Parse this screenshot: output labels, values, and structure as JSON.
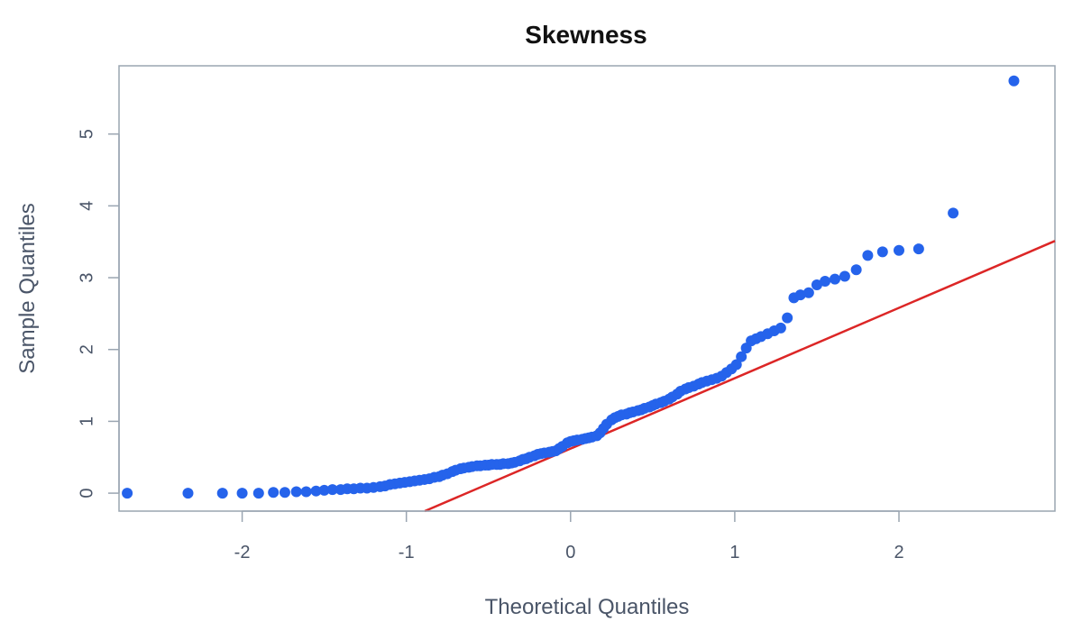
{
  "chart_data": {
    "type": "scatter",
    "title": "Skewness",
    "xlabel": "Theoretical Quantiles",
    "ylabel": "Sample Quantiles",
    "xlim": [
      -2.75,
      2.95
    ],
    "ylim": [
      -0.25,
      5.95
    ],
    "x_ticks": [
      -2,
      -1,
      0,
      1,
      2
    ],
    "y_ticks": [
      0,
      1,
      2,
      3,
      4,
      5
    ],
    "x_tick_labels": [
      "-2",
      "-1",
      "0",
      "1",
      "2"
    ],
    "y_tick_labels": [
      "0",
      "1",
      "2",
      "3",
      "4",
      "5"
    ],
    "grid": false,
    "colors": {
      "points": "#2563eb",
      "reference_line": "#dc2626",
      "axis": "#9aa5b1",
      "text": "#4a5568"
    },
    "reference_line": {
      "slope": 0.98,
      "intercept": 0.62
    },
    "points": [
      [
        -2.7,
        0.0
      ],
      [
        -2.33,
        0.0
      ],
      [
        -2.12,
        0.0
      ],
      [
        -2.0,
        0.0
      ],
      [
        -1.9,
        0.0
      ],
      [
        -1.81,
        0.01
      ],
      [
        -1.74,
        0.01
      ],
      [
        -1.67,
        0.02
      ],
      [
        -1.61,
        0.02
      ],
      [
        -1.55,
        0.03
      ],
      [
        -1.5,
        0.04
      ],
      [
        -1.45,
        0.05
      ],
      [
        -1.4,
        0.05
      ],
      [
        -1.36,
        0.06
      ],
      [
        -1.32,
        0.06
      ],
      [
        -1.28,
        0.07
      ],
      [
        -1.24,
        0.07
      ],
      [
        -1.2,
        0.08
      ],
      [
        -1.16,
        0.09
      ],
      [
        -1.13,
        0.1
      ],
      [
        -1.1,
        0.12
      ],
      [
        -1.07,
        0.13
      ],
      [
        -1.04,
        0.14
      ],
      [
        -1.01,
        0.15
      ],
      [
        -0.98,
        0.16
      ],
      [
        -0.95,
        0.17
      ],
      [
        -0.92,
        0.18
      ],
      [
        -0.89,
        0.19
      ],
      [
        -0.86,
        0.2
      ],
      [
        -0.83,
        0.22
      ],
      [
        -0.8,
        0.23
      ],
      [
        -0.78,
        0.25
      ],
      [
        -0.75,
        0.27
      ],
      [
        -0.72,
        0.3
      ],
      [
        -0.7,
        0.32
      ],
      [
        -0.67,
        0.34
      ],
      [
        -0.65,
        0.35
      ],
      [
        -0.62,
        0.36
      ],
      [
        -0.6,
        0.37
      ],
      [
        -0.57,
        0.38
      ],
      [
        -0.55,
        0.38
      ],
      [
        -0.52,
        0.39
      ],
      [
        -0.5,
        0.39
      ],
      [
        -0.48,
        0.4
      ],
      [
        -0.45,
        0.4
      ],
      [
        -0.43,
        0.4
      ],
      [
        -0.41,
        0.41
      ],
      [
        -0.38,
        0.41
      ],
      [
        -0.36,
        0.42
      ],
      [
        -0.34,
        0.43
      ],
      [
        -0.31,
        0.45
      ],
      [
        -0.29,
        0.47
      ],
      [
        -0.27,
        0.48
      ],
      [
        -0.25,
        0.5
      ],
      [
        -0.22,
        0.52
      ],
      [
        -0.2,
        0.54
      ],
      [
        -0.18,
        0.55
      ],
      [
        -0.16,
        0.56
      ],
      [
        -0.13,
        0.57
      ],
      [
        -0.11,
        0.58
      ],
      [
        -0.09,
        0.59
      ],
      [
        -0.07,
        0.62
      ],
      [
        -0.05,
        0.65
      ],
      [
        -0.02,
        0.7
      ],
      [
        0.0,
        0.72
      ],
      [
        0.02,
        0.73
      ],
      [
        0.04,
        0.74
      ],
      [
        0.07,
        0.75
      ],
      [
        0.09,
        0.76
      ],
      [
        0.11,
        0.77
      ],
      [
        0.13,
        0.78
      ],
      [
        0.16,
        0.8
      ],
      [
        0.18,
        0.84
      ],
      [
        0.2,
        0.9
      ],
      [
        0.22,
        0.96
      ],
      [
        0.25,
        1.02
      ],
      [
        0.27,
        1.05
      ],
      [
        0.29,
        1.07
      ],
      [
        0.31,
        1.09
      ],
      [
        0.34,
        1.1
      ],
      [
        0.36,
        1.12
      ],
      [
        0.38,
        1.13
      ],
      [
        0.41,
        1.15
      ],
      [
        0.43,
        1.16
      ],
      [
        0.45,
        1.18
      ],
      [
        0.48,
        1.2
      ],
      [
        0.5,
        1.22
      ],
      [
        0.52,
        1.24
      ],
      [
        0.55,
        1.26
      ],
      [
        0.57,
        1.28
      ],
      [
        0.6,
        1.31
      ],
      [
        0.62,
        1.34
      ],
      [
        0.65,
        1.38
      ],
      [
        0.67,
        1.42
      ],
      [
        0.7,
        1.45
      ],
      [
        0.72,
        1.47
      ],
      [
        0.75,
        1.49
      ],
      [
        0.78,
        1.52
      ],
      [
        0.8,
        1.54
      ],
      [
        0.83,
        1.56
      ],
      [
        0.86,
        1.58
      ],
      [
        0.89,
        1.6
      ],
      [
        0.92,
        1.63
      ],
      [
        0.95,
        1.68
      ],
      [
        0.98,
        1.73
      ],
      [
        1.01,
        1.79
      ],
      [
        1.04,
        1.9
      ],
      [
        1.07,
        2.02
      ],
      [
        1.1,
        2.12
      ],
      [
        1.13,
        2.15
      ],
      [
        1.16,
        2.18
      ],
      [
        1.2,
        2.22
      ],
      [
        1.24,
        2.26
      ],
      [
        1.28,
        2.3
      ],
      [
        1.32,
        2.44
      ],
      [
        1.36,
        2.72
      ],
      [
        1.4,
        2.76
      ],
      [
        1.45,
        2.79
      ],
      [
        1.5,
        2.9
      ],
      [
        1.55,
        2.95
      ],
      [
        1.61,
        2.98
      ],
      [
        1.67,
        3.02
      ],
      [
        1.74,
        3.11
      ],
      [
        1.81,
        3.31
      ],
      [
        1.9,
        3.36
      ],
      [
        2.0,
        3.38
      ],
      [
        2.12,
        3.4
      ],
      [
        2.33,
        3.9
      ],
      [
        2.7,
        5.74
      ]
    ]
  }
}
